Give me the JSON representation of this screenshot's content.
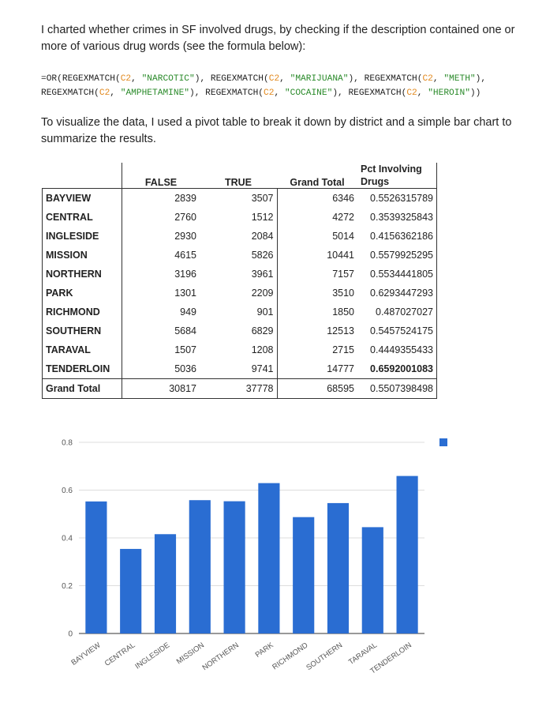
{
  "intro": {
    "paragraph1": "I charted whether crimes in SF involved drugs, by checking if the description contained one or more of various drug words (see the formula below):",
    "formula_line1": [
      {
        "t": "=OR(REGEXMATCH(",
        "c": "plain"
      },
      {
        "t": "C2",
        "c": "ref"
      },
      {
        "t": ", ",
        "c": "plain"
      },
      {
        "t": "\"NARCOTIC\"",
        "c": "str"
      },
      {
        "t": "), REGEXMATCH(",
        "c": "plain"
      },
      {
        "t": "C2",
        "c": "ref"
      },
      {
        "t": ", ",
        "c": "plain"
      },
      {
        "t": "\"MARIJUANA\"",
        "c": "str"
      },
      {
        "t": "), REGEXMATCH(",
        "c": "plain"
      },
      {
        "t": "C2",
        "c": "ref"
      },
      {
        "t": ", ",
        "c": "plain"
      },
      {
        "t": "\"METH\"",
        "c": "str"
      },
      {
        "t": "),",
        "c": "plain"
      }
    ],
    "formula_line2": [
      {
        "t": "REGEXMATCH(",
        "c": "plain"
      },
      {
        "t": "C2",
        "c": "ref"
      },
      {
        "t": ", ",
        "c": "plain"
      },
      {
        "t": "\"AMPHETAMINE\"",
        "c": "str"
      },
      {
        "t": "), REGEXMATCH(",
        "c": "plain"
      },
      {
        "t": "C2",
        "c": "ref"
      },
      {
        "t": ", ",
        "c": "plain"
      },
      {
        "t": "\"COCAINE\"",
        "c": "str"
      },
      {
        "t": "), REGEXMATCH(",
        "c": "plain"
      },
      {
        "t": "C2",
        "c": "ref"
      },
      {
        "t": ", ",
        "c": "plain"
      },
      {
        "t": "\"HEROIN\"",
        "c": "str"
      },
      {
        "t": "))",
        "c": "plain"
      }
    ],
    "paragraph2": "To visualize the data, I used a pivot table to break it down by district and a simple bar chart to summarize the results."
  },
  "pivot": {
    "headers": {
      "false": "FALSE",
      "true": "TRUE",
      "grand": "Grand Total",
      "pct_line1": "Pct Involving",
      "pct_line2": "Drugs"
    },
    "rows": [
      {
        "district": "BAYVIEW",
        "false": "2839",
        "true": "3507",
        "grand": "6346",
        "pct": "0.5526315789"
      },
      {
        "district": "CENTRAL",
        "false": "2760",
        "true": "1512",
        "grand": "4272",
        "pct": "0.3539325843"
      },
      {
        "district": "INGLESIDE",
        "false": "2930",
        "true": "2084",
        "grand": "5014",
        "pct": "0.4156362186"
      },
      {
        "district": "MISSION",
        "false": "4615",
        "true": "5826",
        "grand": "10441",
        "pct": "0.5579925295"
      },
      {
        "district": "NORTHERN",
        "false": "3196",
        "true": "3961",
        "grand": "7157",
        "pct": "0.5534441805"
      },
      {
        "district": "PARK",
        "false": "1301",
        "true": "2209",
        "grand": "3510",
        "pct": "0.6293447293"
      },
      {
        "district": "RICHMOND",
        "false": "949",
        "true": "901",
        "grand": "1850",
        "pct": "0.487027027"
      },
      {
        "district": "SOUTHERN",
        "false": "5684",
        "true": "6829",
        "grand": "12513",
        "pct": "0.5457524175"
      },
      {
        "district": "TARAVAL",
        "false": "1507",
        "true": "1208",
        "grand": "2715",
        "pct": "0.4449355433"
      },
      {
        "district": "TENDERLOIN",
        "false": "5036",
        "true": "9741",
        "grand": "14777",
        "pct": "0.6592001083",
        "pct_bold": true
      }
    ],
    "total": {
      "district": "Grand Total",
      "false": "30817",
      "true": "37778",
      "grand": "68595",
      "pct": "0.5507398498"
    }
  },
  "chart_data": {
    "type": "bar",
    "categories": [
      "BAYVIEW",
      "CENTRAL",
      "INGLESIDE",
      "MISSION",
      "NORTHERN",
      "PARK",
      "RICHMOND",
      "SOUTHERN",
      "TARAVAL",
      "TENDERLOIN"
    ],
    "values": [
      0.5526315789,
      0.3539325843,
      0.4156362186,
      0.5579925295,
      0.5534441805,
      0.6293447293,
      0.487027027,
      0.5457524175,
      0.4449355433,
      0.6592001083
    ],
    "yticks": [
      "0",
      "0.2",
      "0.4",
      "0.6",
      "0.8"
    ],
    "ylim": [
      0,
      0.8
    ],
    "grid": true,
    "legend": "top-right",
    "bar_color": "#2a6dd2"
  }
}
